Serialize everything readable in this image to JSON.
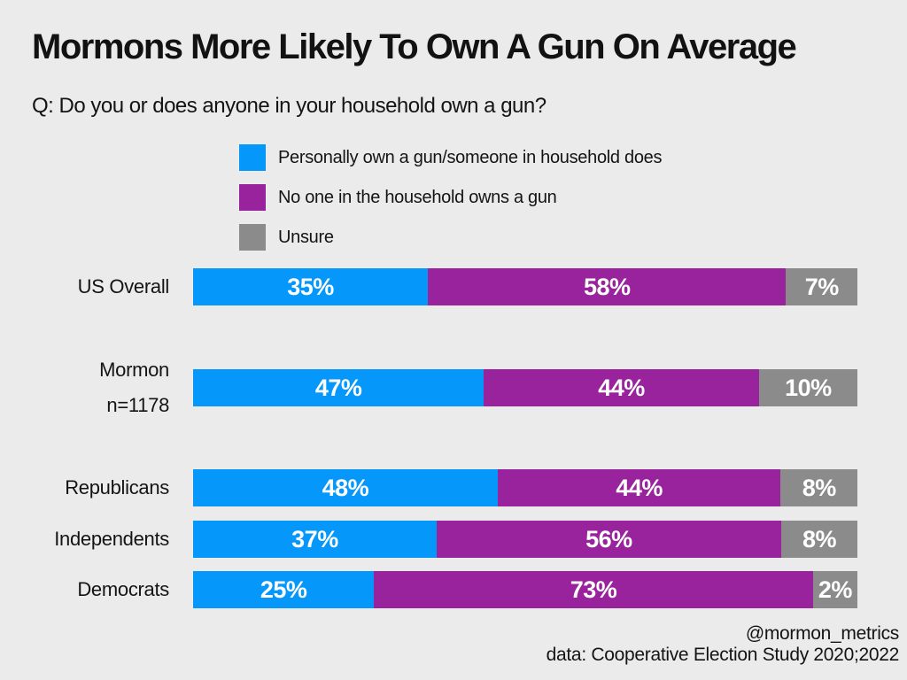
{
  "window": {
    "background": "#ebebeb"
  },
  "header": {
    "title": "Mormons More Likely To Own A Gun On Average",
    "question": "Q: Do you or does anyone in your household own a gun?"
  },
  "legend": {
    "items": [
      {
        "label": "Personally own a gun/someone in household does",
        "color": "#0598fa"
      },
      {
        "label": "No one in the household owns a gun",
        "color": "#98239c"
      },
      {
        "label": "Unsure",
        "color": "#8b8b8b"
      }
    ]
  },
  "chart_data": {
    "type": "bar",
    "orientation": "horizontal",
    "stacked": true,
    "value_unit": "percent",
    "xlim": [
      0,
      100
    ],
    "grid": false,
    "legend_position": "top-left",
    "title": "Mormons More Likely To Own A Gun On Average",
    "subtitle": "Q: Do you or does anyone in your household own a gun?",
    "series_names": [
      "Personally own a gun/someone in household does",
      "No one in the household owns a gun",
      "Unsure"
    ],
    "colors": [
      "#0598fa",
      "#98239c",
      "#8b8b8b"
    ],
    "categories": [
      "US Overall",
      "Mormon n=1178",
      "Republicans",
      "Independents",
      "Democrats"
    ],
    "rows": [
      {
        "label": "US Overall",
        "sublabel": "",
        "values": [
          35,
          58,
          7
        ],
        "value_labels": [
          "35%",
          "58%",
          "7%"
        ]
      },
      {
        "label": "Mormon",
        "sublabel": "n=1178",
        "values": [
          47,
          44,
          10
        ],
        "value_labels": [
          "47%",
          "44%",
          "10%"
        ]
      },
      {
        "label": "Republicans",
        "sublabel": "",
        "values": [
          48,
          44,
          8
        ],
        "value_labels": [
          "48%",
          "44%",
          "8%"
        ]
      },
      {
        "label": "Independents",
        "sublabel": "",
        "values": [
          37,
          56,
          8
        ],
        "value_labels": [
          "37%",
          "56%",
          "8%"
        ]
      },
      {
        "label": "Democrats",
        "sublabel": "",
        "values": [
          25,
          73,
          2
        ],
        "value_labels": [
          "25%",
          "73%",
          "2%"
        ]
      }
    ]
  },
  "footer": {
    "handle": "@mormon_metrics",
    "source": "data: Cooperative Election Study 2020;2022"
  }
}
